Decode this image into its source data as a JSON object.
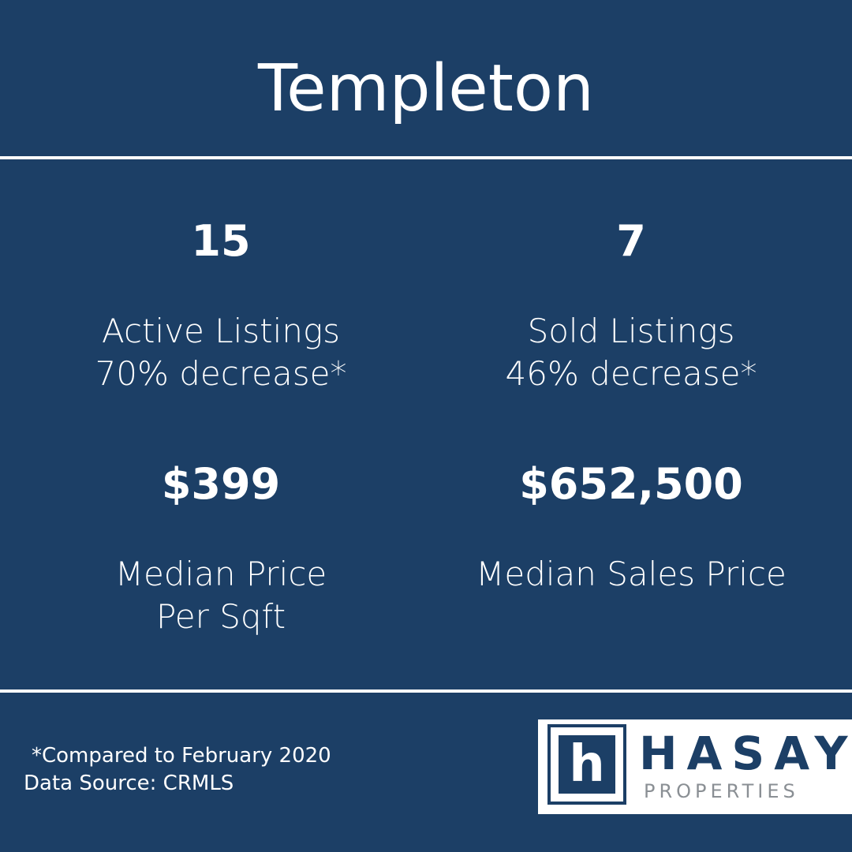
{
  "header": {
    "title": "Templeton"
  },
  "stats": [
    {
      "value": "15",
      "lines": [
        "Active Listings",
        "70% decrease*"
      ]
    },
    {
      "value": "7",
      "lines": [
        "Sold Listings",
        "46% decrease*"
      ]
    },
    {
      "value": "$399",
      "lines": [
        "Median Price",
        "Per Sqft"
      ]
    },
    {
      "value": "$652,500",
      "lines": [
        "Median Sales Price"
      ]
    }
  ],
  "footer": {
    "notes": [
      "*Compared to February 2020",
      "Data Source: CRMLS"
    ]
  },
  "logo": {
    "mark": "h",
    "name": "HASAY",
    "tagline": "PROPERTIES"
  }
}
